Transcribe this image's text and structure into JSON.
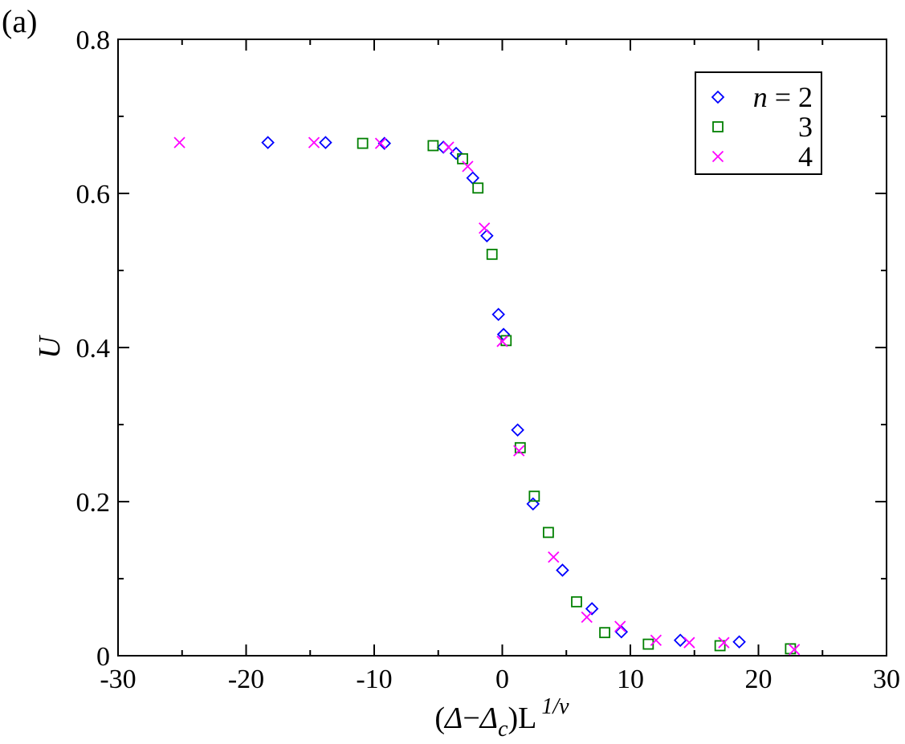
{
  "panel_label": "(a)",
  "chart_data": {
    "type": "scatter",
    "title": "",
    "xlabel": "(Δ−Δc)L 1/ν",
    "xlabel_parts": {
      "open": "(",
      "delta1": "Δ",
      "minus": "−",
      "delta2": "Δ",
      "sub": "c",
      "close": ")L",
      "sup": "1/ν"
    },
    "ylabel": "U",
    "xlim": [
      -30,
      30
    ],
    "ylim": [
      0,
      0.8
    ],
    "xticks": [
      -30,
      -20,
      -10,
      0,
      10,
      20,
      30
    ],
    "xtick_labels": [
      "-30",
      "-20",
      "-10",
      "0",
      "10",
      "20",
      "30"
    ],
    "yticks": [
      0,
      0.2,
      0.4,
      0.6,
      0.8
    ],
    "ytick_labels": [
      "0",
      "0.2",
      "0.4",
      "0.6",
      "0.8"
    ],
    "grid": false,
    "legend_position": "top-right",
    "legend_title_var": "n",
    "legend_eq": " = ",
    "series": [
      {
        "name": "2",
        "legend_label": "n = 2",
        "marker": "diamond",
        "color": "#0000ff",
        "points": [
          [
            -18.3,
            0.666
          ],
          [
            -13.8,
            0.666
          ],
          [
            -9.2,
            0.665
          ],
          [
            -4.6,
            0.66
          ],
          [
            -3.6,
            0.652
          ],
          [
            -2.3,
            0.62
          ],
          [
            -1.2,
            0.545
          ],
          [
            -0.3,
            0.443
          ],
          [
            0.1,
            0.417
          ],
          [
            1.2,
            0.293
          ],
          [
            2.4,
            0.197
          ],
          [
            4.7,
            0.111
          ],
          [
            7.0,
            0.061
          ],
          [
            9.3,
            0.031
          ],
          [
            13.9,
            0.02
          ],
          [
            18.5,
            0.018
          ]
        ]
      },
      {
        "name": "3",
        "legend_label": "3",
        "marker": "square",
        "color": "#008000",
        "points": [
          [
            -10.9,
            0.665
          ],
          [
            -5.4,
            0.662
          ],
          [
            -3.1,
            0.645
          ],
          [
            -1.9,
            0.607
          ],
          [
            -0.8,
            0.521
          ],
          [
            0.3,
            0.409
          ],
          [
            1.4,
            0.27
          ],
          [
            2.5,
            0.207
          ],
          [
            3.6,
            0.16
          ],
          [
            5.8,
            0.07
          ],
          [
            8.0,
            0.03
          ],
          [
            11.4,
            0.015
          ],
          [
            17.0,
            0.013
          ],
          [
            22.5,
            0.009
          ]
        ]
      },
      {
        "name": "4",
        "legend_label": "4",
        "marker": "cross",
        "color": "#ff00ff",
        "points": [
          [
            -25.2,
            0.666
          ],
          [
            -14.7,
            0.666
          ],
          [
            -9.5,
            0.665
          ],
          [
            -4.2,
            0.66
          ],
          [
            -2.7,
            0.635
          ],
          [
            -1.4,
            0.555
          ],
          [
            0.0,
            0.408
          ],
          [
            1.3,
            0.266
          ],
          [
            4.0,
            0.128
          ],
          [
            6.6,
            0.05
          ],
          [
            9.2,
            0.038
          ],
          [
            12.0,
            0.02
          ],
          [
            14.6,
            0.017
          ],
          [
            17.3,
            0.017
          ],
          [
            22.8,
            0.008
          ]
        ]
      }
    ]
  }
}
